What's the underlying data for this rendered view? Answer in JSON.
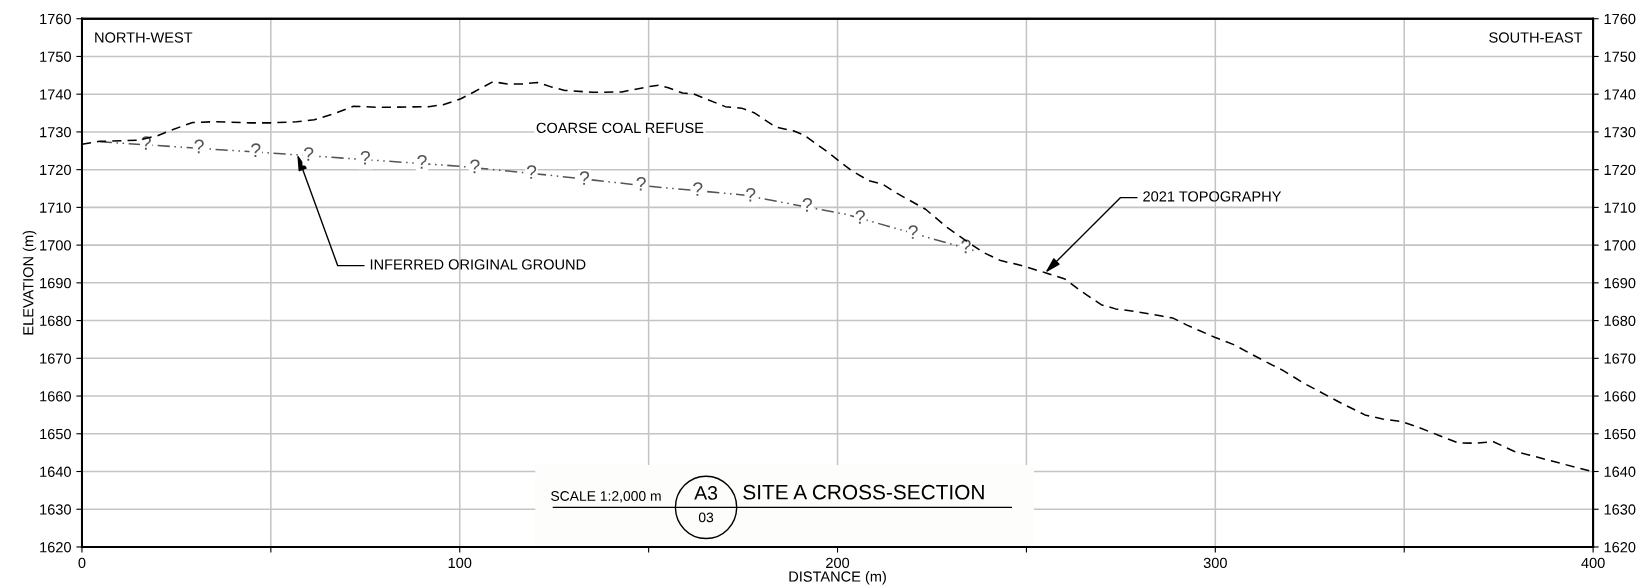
{
  "chart_data": {
    "type": "line",
    "title": "SITE A CROSS-SECTION",
    "xlabel": "DISTANCE (m)",
    "ylabel": "ELEVATION (m)",
    "xlim": [
      0,
      400
    ],
    "xticks": [
      0,
      {
        "value": 50,
        "label": null
      },
      100,
      {
        "value": 150,
        "label": null
      },
      200,
      {
        "value": 250,
        "label": null
      },
      300,
      {
        "value": 350,
        "label": null
      },
      400
    ],
    "ylim": [
      1620,
      1760
    ],
    "yticks": [
      1620,
      1630,
      1640,
      1650,
      1660,
      1670,
      1680,
      1690,
      1700,
      1710,
      1720,
      1730,
      1740,
      1750,
      1760
    ],
    "y2lim": [
      1620,
      1760
    ],
    "y2ticks": [
      1620,
      1630,
      1640,
      1650,
      1660,
      1670,
      1680,
      1690,
      1700,
      1710,
      1720,
      1730,
      1740,
      1750,
      1760
    ],
    "grid": true,
    "marker": "none",
    "series": [
      {
        "color": "#000000",
        "line_style": "dashed",
        "x": [
          0,
          4.7,
          15,
          20,
          23.7,
          29.3,
          35,
          44.5,
          50,
          56.8,
          61.5,
          67.2,
          71.9,
          78.5,
          91.8,
          95.6,
          100.3,
          104,
          108.8,
          112.6,
          116.4,
          120.6,
          124,
          127.8,
          135.3,
          142.9,
          149.5,
          152.8,
          155.2,
          159,
          161.8,
          170.3,
          174.6,
          177.9,
          183.6,
          188.3,
          191.2,
          196.8,
          203.5,
          208.2,
          212,
          215.8,
          223.3,
          229,
          234.7,
          238.5,
          243.2,
          247.9,
          255,
          260.2,
          264.2,
          269.8,
          273.6,
          277.4,
          285.8,
          288.7,
          292.5,
          300,
          304.7,
          309.4,
          315.1,
          317.9,
          323.6,
          333,
          339.6,
          344.3,
          349.1,
          353.8,
          359.4,
          364.2,
          368.9,
          373.6,
          379.2,
          383,
          400
        ],
        "values": [
          1726.7,
          1727.5,
          1727.8,
          1729,
          1730.5,
          1732.5,
          1732.7,
          1732.4,
          1732.4,
          1732.7,
          1733.2,
          1735,
          1736.8,
          1736.5,
          1736.7,
          1737.2,
          1738.8,
          1740.7,
          1743.3,
          1742.7,
          1742.7,
          1743.1,
          1742,
          1741,
          1740.5,
          1740.6,
          1741.9,
          1742.4,
          1741.7,
          1740.3,
          1740.1,
          1736.7,
          1736.3,
          1735.1,
          1731.3,
          1730.3,
          1729.1,
          1725.1,
          1719.9,
          1717.1,
          1716.1,
          1713.7,
          1709.5,
          1704.7,
          1700.7,
          1698.1,
          1695.9,
          1694.8,
          1692.7,
          1691,
          1688,
          1684.2,
          1683.1,
          1682.6,
          1681.2,
          1680.7,
          1678.8,
          1675.5,
          1673.7,
          1671.2,
          1668.2,
          1666.8,
          1663.3,
          1658.3,
          1655,
          1653.9,
          1653.3,
          1651.7,
          1649.5,
          1647.6,
          1647.5,
          1647.9,
          1645.3,
          1644.4,
          1639.9
        ]
      },
      {
        "color": "#555555",
        "line_style": "dashdot",
        "x": [
          4.7,
          50,
          100,
          125,
          150,
          175,
          202.5,
          236
        ],
        "values": [
          1727.4,
          1724.4,
          1720.9,
          1718.4,
          1715.6,
          1713.3,
          1708.1,
          1698.6
        ]
      }
    ],
    "annotations": [
      {
        "text": "INFERRED ORIGINAL GROUND",
        "x": 57,
        "y": 1724
      },
      {
        "text": "2021 TOPOGRAPHY",
        "x": 255,
        "y": 1692.7
      },
      "COARSE COAL REFUSE",
      "NORTH-WEST",
      "SOUTH-EAST",
      "SCALE 1:2,000 m",
      "A3",
      "03",
      {
        "text": "?",
        "x": 17,
        "y": 1726.6
      },
      {
        "text": "?",
        "x": 31,
        "y": 1725.7
      },
      {
        "text": "?",
        "x": 46,
        "y": 1724.7
      },
      {
        "text": "?",
        "x": 60,
        "y": 1723.7
      },
      {
        "text": "?",
        "x": 75,
        "y": 1722.7
      },
      {
        "text": "?",
        "x": 90,
        "y": 1721.6
      },
      {
        "text": "?",
        "x": 104,
        "y": 1720.4
      },
      {
        "text": "?",
        "x": 119,
        "y": 1718.9
      },
      {
        "text": "?",
        "x": 133,
        "y": 1717.3
      },
      {
        "text": "?",
        "x": 148,
        "y": 1715.8
      },
      {
        "text": "?",
        "x": 163,
        "y": 1714.4
      },
      {
        "text": "?",
        "x": 177,
        "y": 1712.9
      },
      {
        "text": "?",
        "x": 192,
        "y": 1710.2
      },
      {
        "text": "?",
        "x": 206,
        "y": 1707
      },
      {
        "text": "?",
        "x": 220,
        "y": 1703
      },
      {
        "text": "?",
        "x": 234,
        "y": 1699.2
      }
    ]
  }
}
